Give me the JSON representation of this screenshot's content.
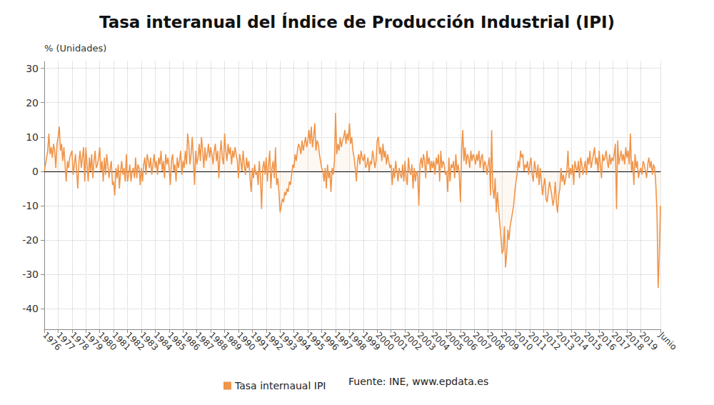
{
  "chart_data": {
    "type": "line",
    "title": "Tasa interanual del Índice de Producción Industrial (IPI)",
    "y_label": "% (Unidades)",
    "source": "Fuente: INE, www.epdata.es",
    "grid": true,
    "ylim": [
      -46,
      32
    ],
    "yticks": [
      -40,
      -30,
      -20,
      -10,
      0,
      10,
      20,
      30
    ],
    "categories": [
      "1976",
      null,
      null,
      null,
      null,
      null,
      null,
      null,
      null,
      null,
      null,
      null,
      "1977",
      null,
      null,
      null,
      null,
      null,
      null,
      null,
      null,
      null,
      null,
      null,
      "1978",
      null,
      null,
      null,
      null,
      null,
      null,
      null,
      null,
      null,
      null,
      null,
      "1979",
      null,
      null,
      null,
      null,
      null,
      null,
      null,
      null,
      null,
      null,
      null,
      "1980",
      null,
      null,
      null,
      null,
      null,
      null,
      null,
      null,
      null,
      null,
      null,
      "1981",
      null,
      null,
      null,
      null,
      null,
      null,
      null,
      null,
      null,
      null,
      null,
      "1982",
      null,
      null,
      null,
      null,
      null,
      null,
      null,
      null,
      null,
      null,
      null,
      "1983",
      null,
      null,
      null,
      null,
      null,
      null,
      null,
      null,
      null,
      null,
      null,
      "1984",
      null,
      null,
      null,
      null,
      null,
      null,
      null,
      null,
      null,
      null,
      null,
      "1985",
      null,
      null,
      null,
      null,
      null,
      null,
      null,
      null,
      null,
      null,
      null,
      "1986",
      null,
      null,
      null,
      null,
      null,
      null,
      null,
      null,
      null,
      null,
      null,
      "1987",
      null,
      null,
      null,
      null,
      null,
      null,
      null,
      null,
      null,
      null,
      null,
      "1988",
      null,
      null,
      null,
      null,
      null,
      null,
      null,
      null,
      null,
      null,
      null,
      "1989",
      null,
      null,
      null,
      null,
      null,
      null,
      null,
      null,
      null,
      null,
      null,
      "1990",
      null,
      null,
      null,
      null,
      null,
      null,
      null,
      null,
      null,
      null,
      null,
      "1991",
      null,
      null,
      null,
      null,
      null,
      null,
      null,
      null,
      null,
      null,
      null,
      "1992",
      null,
      null,
      null,
      null,
      null,
      null,
      null,
      null,
      null,
      null,
      null,
      "1993",
      null,
      null,
      null,
      null,
      null,
      null,
      null,
      null,
      null,
      null,
      null,
      "1994",
      null,
      null,
      null,
      null,
      null,
      null,
      null,
      null,
      null,
      null,
      null,
      "1995",
      null,
      null,
      null,
      null,
      null,
      null,
      null,
      null,
      null,
      null,
      null,
      "1996",
      null,
      null,
      null,
      null,
      null,
      null,
      null,
      null,
      null,
      null,
      null,
      "1997",
      null,
      null,
      null,
      null,
      null,
      null,
      null,
      null,
      null,
      null,
      null,
      "1998",
      null,
      null,
      null,
      null,
      null,
      null,
      null,
      null,
      null,
      null,
      null,
      "1999",
      null,
      null,
      null,
      null,
      null,
      null,
      null,
      null,
      null,
      null,
      null,
      "2000",
      null,
      null,
      null,
      null,
      null,
      null,
      null,
      null,
      null,
      null,
      null,
      "2001",
      null,
      null,
      null,
      null,
      null,
      null,
      null,
      null,
      null,
      null,
      null,
      "2002",
      null,
      null,
      null,
      null,
      null,
      null,
      null,
      null,
      null,
      null,
      null,
      "2003",
      null,
      null,
      null,
      null,
      null,
      null,
      null,
      null,
      null,
      null,
      null,
      "2004",
      null,
      null,
      null,
      null,
      null,
      null,
      null,
      null,
      null,
      null,
      null,
      "2005",
      null,
      null,
      null,
      null,
      null,
      null,
      null,
      null,
      null,
      null,
      null,
      "2006",
      null,
      null,
      null,
      null,
      null,
      null,
      null,
      null,
      null,
      null,
      null,
      "2007",
      null,
      null,
      null,
      null,
      null,
      null,
      null,
      null,
      null,
      null,
      null,
      "2008",
      null,
      null,
      null,
      null,
      null,
      null,
      null,
      null,
      null,
      null,
      null,
      "2009",
      null,
      null,
      null,
      null,
      null,
      null,
      null,
      null,
      null,
      null,
      null,
      "2010",
      null,
      null,
      null,
      null,
      null,
      null,
      null,
      null,
      null,
      null,
      null,
      "2011",
      null,
      null,
      null,
      null,
      null,
      null,
      null,
      null,
      null,
      null,
      null,
      "2012",
      null,
      null,
      null,
      null,
      null,
      null,
      null,
      null,
      null,
      null,
      null,
      "2013",
      null,
      null,
      null,
      null,
      null,
      null,
      null,
      null,
      null,
      null,
      null,
      "2014",
      null,
      null,
      null,
      null,
      null,
      null,
      null,
      null,
      null,
      null,
      null,
      "2015",
      null,
      null,
      null,
      null,
      null,
      null,
      null,
      null,
      null,
      null,
      null,
      "2016",
      null,
      null,
      null,
      null,
      null,
      null,
      null,
      null,
      null,
      null,
      null,
      "2017",
      null,
      null,
      null,
      null,
      null,
      null,
      null,
      null,
      null,
      null,
      null,
      "2018",
      null,
      null,
      null,
      null,
      null,
      null,
      null,
      null,
      null,
      null,
      null,
      "2019",
      null,
      null,
      null,
      null,
      null,
      null,
      null,
      null,
      null,
      null,
      null,
      null,
      null,
      null,
      null,
      null,
      "Junio"
    ],
    "series": [
      {
        "name": "Tasa internaual IPI",
        "color": "#f0954a",
        "values": [
          0,
          2,
          4,
          6,
          11,
          5,
          7,
          4,
          8,
          6,
          1,
          8,
          10,
          13,
          6,
          8,
          3,
          7,
          2,
          -3,
          3,
          1,
          4,
          5,
          6,
          -1,
          2,
          5,
          0,
          -5,
          3,
          6,
          1,
          4,
          7,
          -3,
          7,
          2,
          -3,
          4,
          0,
          5,
          -2,
          3,
          6,
          1,
          2,
          4,
          7,
          0,
          3,
          -3,
          4,
          -1,
          5,
          2,
          -2,
          1,
          3,
          -4,
          -3,
          -7,
          1,
          -2,
          2,
          -5,
          0,
          3,
          -1,
          1,
          -3,
          5,
          -3,
          -1,
          2,
          -3,
          0,
          1,
          -2,
          4,
          -2,
          2,
          1,
          -4,
          1,
          -3,
          2,
          4,
          -1,
          5,
          3,
          1,
          4,
          -1,
          2,
          5,
          1,
          3,
          -1,
          4,
          2,
          6,
          0,
          3,
          -2,
          5,
          2,
          4,
          1,
          -4,
          3,
          5,
          0,
          2,
          -3,
          4,
          1,
          3,
          6,
          -1,
          3,
          1,
          6,
          2,
          11,
          8,
          2,
          5,
          10,
          4,
          -4,
          6,
          2,
          4,
          8,
          3,
          10,
          6,
          1,
          7,
          3,
          5,
          8,
          4,
          7,
          5,
          2,
          6,
          8,
          3,
          6,
          -2,
          5,
          9,
          4,
          2,
          11,
          6,
          3,
          8,
          5,
          7,
          2,
          6,
          4,
          7,
          5,
          3,
          -2,
          5,
          3,
          0,
          6,
          2,
          -1,
          4,
          1,
          3,
          -2,
          -6,
          1,
          -2,
          2,
          -1,
          0,
          -4,
          3,
          -2,
          -11,
          1,
          3,
          -1,
          4,
          -3,
          2,
          6,
          -5,
          1,
          3,
          -2,
          7,
          -4,
          -2,
          -6,
          -12,
          -10,
          -8,
          -9,
          -6,
          -7,
          -5,
          -6,
          -3,
          -4,
          -1,
          2,
          1,
          5,
          3,
          6,
          8,
          7,
          5,
          9,
          6,
          8,
          10,
          7,
          9,
          12,
          8,
          13,
          7,
          10,
          14,
          6,
          9,
          8,
          5,
          3,
          1,
          0,
          -3,
          1,
          -5,
          2,
          -2,
          0,
          -6,
          1,
          -1,
          3,
          17,
          5,
          8,
          6,
          10,
          7,
          9,
          10,
          12,
          8,
          11,
          9,
          14,
          8,
          10,
          6,
          4,
          1,
          -3,
          3,
          5,
          2,
          6,
          4,
          3,
          5,
          1,
          2,
          4,
          0,
          3,
          2,
          6,
          4,
          1,
          3,
          9,
          10,
          5,
          7,
          3,
          8,
          4,
          6,
          2,
          5,
          3,
          1,
          2,
          -4,
          1,
          -2,
          3,
          0,
          -3,
          1,
          -1,
          -2,
          2,
          -3,
          3,
          -2,
          -4,
          4,
          0,
          -1,
          2,
          -5,
          1,
          -3,
          0,
          -1,
          -10,
          2,
          4,
          1,
          5,
          3,
          -2,
          6,
          2,
          4,
          0,
          3,
          1,
          3,
          -1,
          4,
          2,
          5,
          -3,
          6,
          1,
          3,
          2,
          -1,
          0,
          -6,
          4,
          -3,
          2,
          1,
          3,
          -2,
          5,
          0,
          2,
          -1,
          -9,
          6,
          12,
          3,
          7,
          2,
          5,
          4,
          1,
          6,
          3,
          5,
          4,
          2,
          5,
          3,
          6,
          1,
          4,
          5,
          0,
          3,
          2,
          -1,
          2,
          4,
          -7,
          12,
          -5,
          -8,
          -2,
          -12,
          -6,
          -11,
          -15,
          -19,
          -24,
          -23,
          -16,
          -28,
          -24,
          -17,
          -20,
          -16,
          -14,
          -12,
          -10,
          -6,
          -3,
          -1,
          3,
          1,
          6,
          4,
          5,
          0,
          2,
          1,
          3,
          -1,
          2,
          4,
          -1,
          -3,
          3,
          1,
          -2,
          2,
          -4,
          1,
          -3,
          -7,
          -4,
          -2,
          -8,
          -9,
          -6,
          -3,
          -5,
          -7,
          -10,
          -8,
          -3,
          -9,
          -12,
          -7,
          -5,
          1,
          -3,
          -1,
          -4,
          -2,
          0,
          6,
          -2,
          1,
          -1,
          2,
          -4,
          3,
          1,
          0,
          3,
          -2,
          4,
          2,
          -1,
          1,
          3,
          -1,
          4,
          2,
          6,
          1,
          3,
          5,
          7,
          2,
          4,
          0,
          6,
          2,
          -2,
          5,
          3,
          4,
          6,
          3,
          1,
          5,
          2,
          4,
          3,
          5,
          8,
          -11,
          9,
          2,
          4,
          6,
          3,
          5,
          2,
          7,
          4,
          6,
          2,
          11,
          0,
          3,
          -4,
          5,
          1,
          3,
          -2,
          0,
          1,
          -1,
          3,
          2,
          0,
          -2,
          2,
          4,
          1,
          3,
          -1,
          2,
          1,
          -4,
          -12,
          -34,
          -25,
          -10
        ]
      }
    ]
  }
}
